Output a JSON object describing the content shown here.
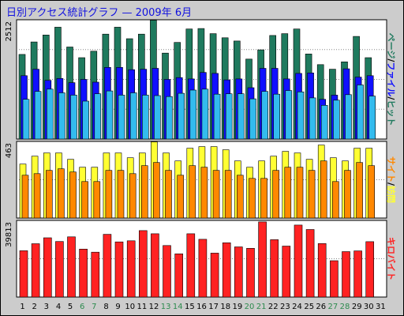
{
  "page": {
    "title": "日別アクセス統計グラフ — 2009年 6月"
  },
  "colors": {
    "background": "#cccccc",
    "plot_background": "#ffffff",
    "page_total": "#1f7a5e",
    "file": "#1010ff",
    "hit": "#33bbee",
    "site": "#ffff33",
    "visit": "#ff8800",
    "kilobyte": "#ff2222",
    "weekday_label": "#000000",
    "weekend_label": "#2d8a4e"
  },
  "chart_data": [
    {
      "type": "bar",
      "panel": "top",
      "ymax_label": "2512",
      "ylim": [
        0,
        2512
      ],
      "right_label": [
        {
          "text": "ページ",
          "color": "#1f7a5e"
        },
        {
          "text": "/",
          "color": "#000000"
        },
        {
          "text": "ファイル",
          "color": "#1010ff"
        },
        {
          "text": "/",
          "color": "#000000"
        },
        {
          "text": "ヒット",
          "color": "#1f7a5e"
        }
      ],
      "categories": [
        "1",
        "2",
        "3",
        "4",
        "5",
        "6",
        "7",
        "8",
        "9",
        "10",
        "11",
        "12",
        "13",
        "14",
        "15",
        "16",
        "17",
        "18",
        "19",
        "20",
        "21",
        "22",
        "23",
        "24",
        "25",
        "26",
        "27",
        "28",
        "29",
        "30",
        "31"
      ],
      "series": [
        {
          "key": "page",
          "values": [
            1830,
            2100,
            2250,
            2420,
            1990,
            1760,
            1900,
            2270,
            2420,
            2170,
            2270,
            2570,
            1860,
            2090,
            2380,
            2390,
            2280,
            2190,
            2120,
            1730,
            1930,
            2240,
            2280,
            2380,
            1840,
            1610,
            1510,
            1670,
            2220,
            1760,
            0
          ]
        },
        {
          "key": "file",
          "values": [
            1370,
            1510,
            1270,
            1310,
            1220,
            1290,
            1230,
            1550,
            1550,
            1500,
            1510,
            1530,
            1290,
            1330,
            1300,
            1440,
            1420,
            1280,
            1300,
            1110,
            1530,
            1530,
            1300,
            1420,
            1430,
            860,
            950,
            1520,
            1340,
            1370,
            0
          ]
        },
        {
          "key": "hit",
          "values": [
            860,
            1030,
            1080,
            1000,
            950,
            820,
            980,
            1040,
            950,
            1000,
            950,
            940,
            920,
            990,
            1060,
            1080,
            970,
            980,
            980,
            870,
            1030,
            970,
            1050,
            1020,
            890,
            730,
            840,
            960,
            1170,
            930,
            0
          ]
        }
      ]
    },
    {
      "type": "bar",
      "panel": "middle",
      "ymax_label": "463",
      "ylim": [
        0,
        463
      ],
      "right_label": [
        {
          "text": "サイト",
          "color": "#ff8800"
        },
        {
          "text": "/",
          "color": "#000000"
        },
        {
          "text": "訪問",
          "color": "#ffff33"
        }
      ],
      "categories": [
        "1",
        "2",
        "3",
        "4",
        "5",
        "6",
        "7",
        "8",
        "9",
        "10",
        "11",
        "12",
        "13",
        "14",
        "15",
        "16",
        "17",
        "18",
        "19",
        "20",
        "21",
        "22",
        "23",
        "24",
        "25",
        "26",
        "27",
        "28",
        "29",
        "30",
        "31"
      ],
      "series": [
        {
          "key": "site",
          "values": [
            340,
            390,
            410,
            410,
            370,
            320,
            320,
            410,
            410,
            380,
            410,
            480,
            410,
            360,
            440,
            450,
            450,
            430,
            360,
            320,
            360,
            390,
            420,
            410,
            370,
            460,
            380,
            360,
            440,
            440,
            0
          ]
        },
        {
          "key": "visit",
          "values": [
            270,
            280,
            300,
            310,
            290,
            230,
            230,
            300,
            300,
            280,
            330,
            350,
            300,
            270,
            330,
            320,
            300,
            300,
            270,
            250,
            250,
            300,
            320,
            320,
            300,
            360,
            230,
            300,
            350,
            330,
            0
          ]
        }
      ]
    },
    {
      "type": "bar",
      "panel": "bottom",
      "ymax_label": "39813",
      "ylim": [
        0,
        39813
      ],
      "right_label": [
        {
          "text": "キロバイト",
          "color": "#ff2222"
        }
      ],
      "categories": [
        "1",
        "2",
        "3",
        "4",
        "5",
        "6",
        "7",
        "8",
        "9",
        "10",
        "11",
        "12",
        "13",
        "14",
        "15",
        "16",
        "17",
        "18",
        "19",
        "20",
        "21",
        "22",
        "23",
        "24",
        "25",
        "26",
        "27",
        "28",
        "29",
        "30",
        "31"
      ],
      "series": [
        {
          "key": "kilobyte",
          "values": [
            25100,
            28900,
            32100,
            30100,
            32600,
            26000,
            24300,
            34000,
            29900,
            30500,
            36000,
            34300,
            27900,
            23400,
            34300,
            31300,
            23800,
            29400,
            27200,
            26400,
            40700,
            31100,
            27600,
            39000,
            36600,
            29000,
            19700,
            24600,
            25000,
            30000,
            0
          ]
        }
      ]
    }
  ],
  "x_axis": {
    "labels": [
      "1",
      "2",
      "3",
      "4",
      "5",
      "6",
      "7",
      "8",
      "9",
      "10",
      "11",
      "12",
      "13",
      "14",
      "15",
      "16",
      "17",
      "18",
      "19",
      "20",
      "21",
      "22",
      "23",
      "24",
      "25",
      "26",
      "27",
      "28",
      "29",
      "30",
      "31"
    ],
    "weekend_days": [
      "6",
      "7",
      "13",
      "14",
      "20",
      "21",
      "27",
      "28"
    ]
  }
}
